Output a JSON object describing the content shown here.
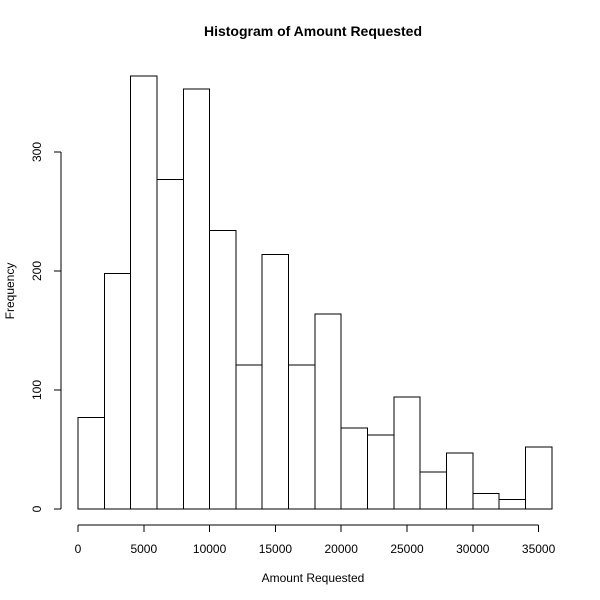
{
  "chart_data": {
    "type": "bar",
    "title": "Histogram of Amount Requested",
    "xlabel": "Amount Requested",
    "ylabel": "Frequency",
    "grid": false,
    "legend": "none",
    "bar_fill": "#ffffff",
    "bar_stroke": "#000000",
    "bins": [
      {
        "start": 0,
        "end": 2000,
        "count": 77
      },
      {
        "start": 2000,
        "end": 4000,
        "count": 198
      },
      {
        "start": 4000,
        "end": 6000,
        "count": 364
      },
      {
        "start": 6000,
        "end": 8000,
        "count": 277
      },
      {
        "start": 8000,
        "end": 10000,
        "count": 353
      },
      {
        "start": 10000,
        "end": 12000,
        "count": 234
      },
      {
        "start": 12000,
        "end": 14000,
        "count": 121
      },
      {
        "start": 14000,
        "end": 16000,
        "count": 214
      },
      {
        "start": 16000,
        "end": 18000,
        "count": 121
      },
      {
        "start": 18000,
        "end": 20000,
        "count": 164
      },
      {
        "start": 20000,
        "end": 22000,
        "count": 68
      },
      {
        "start": 22000,
        "end": 24000,
        "count": 62
      },
      {
        "start": 24000,
        "end": 26000,
        "count": 94
      },
      {
        "start": 26000,
        "end": 28000,
        "count": 31
      },
      {
        "start": 28000,
        "end": 30000,
        "count": 47
      },
      {
        "start": 30000,
        "end": 32000,
        "count": 13
      },
      {
        "start": 32000,
        "end": 34000,
        "count": 8
      },
      {
        "start": 34000,
        "end": 36000,
        "count": 52
      }
    ],
    "xlim": [
      0,
      36000
    ],
    "ylim": [
      0,
      380
    ],
    "x_ticks": [
      0,
      5000,
      10000,
      15000,
      20000,
      25000,
      30000,
      35000
    ],
    "x_tick_labels": [
      "0",
      "5000",
      "10000",
      "15000",
      "20000",
      "25000",
      "30000",
      "35000"
    ],
    "y_ticks": [
      0,
      100,
      200,
      300
    ],
    "y_tick_labels": [
      "0",
      "100",
      "200",
      "300"
    ]
  }
}
